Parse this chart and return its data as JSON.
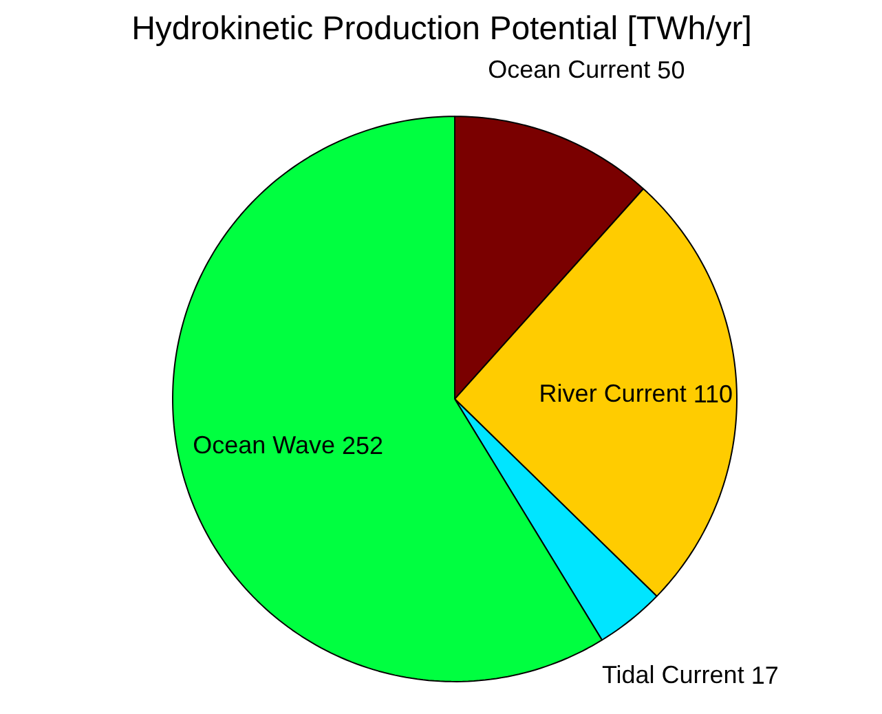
{
  "chart_data": {
    "type": "pie",
    "title": "Hydrokinetic Production Potential [TWh/yr]",
    "categories": [
      "Ocean Current",
      "River Current",
      "Tidal Current",
      "Ocean Wave"
    ],
    "values": [
      50,
      110,
      17,
      252
    ],
    "colors": [
      "#7a0000",
      "#ffcc00",
      "#00e5ff",
      "#00ff40"
    ],
    "data_labels": true
  }
}
